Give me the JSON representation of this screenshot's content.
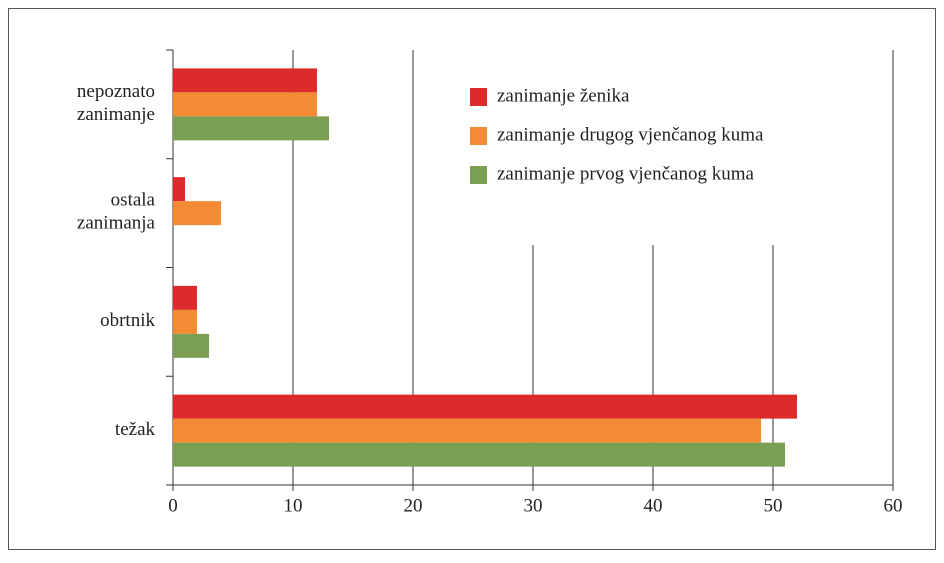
{
  "chart_data": {
    "type": "bar",
    "orientation": "horizontal",
    "categories": [
      "nepoznato zanimanje",
      "ostala zanimanja",
      "obrtnik",
      "težak"
    ],
    "series": [
      {
        "name": "zanimanje ženika",
        "color": "#dc2b2b",
        "values": [
          12,
          1,
          2,
          52
        ]
      },
      {
        "name": "zanimanje drugog vjenčanog kuma",
        "color": "#f58a35",
        "values": [
          12,
          4,
          2,
          49
        ]
      },
      {
        "name": "zanimanje prvog vjenčanog kuma",
        "color": "#7a9e52",
        "values": [
          13,
          0,
          3,
          51
        ]
      }
    ],
    "xlim": [
      0,
      60
    ],
    "xticks": [
      0,
      10,
      20,
      30,
      40,
      50,
      60
    ],
    "grid": true,
    "legend": "upper right"
  }
}
